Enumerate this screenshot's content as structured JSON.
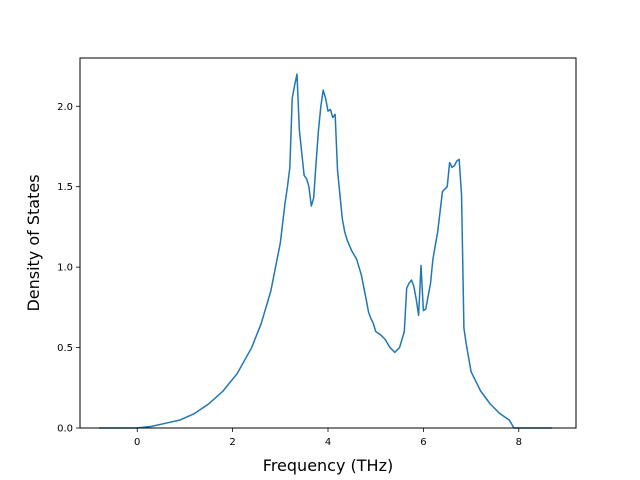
{
  "chart_data": {
    "type": "line",
    "title": "",
    "xlabel": "Frequency (THz)",
    "ylabel": "Density of States",
    "xlim": [
      -1.2,
      9.2
    ],
    "ylim": [
      0,
      2.3
    ],
    "xticks": [
      0,
      2,
      4,
      6,
      8
    ],
    "yticks": [
      0.0,
      0.5,
      1.0,
      1.5,
      2.0
    ],
    "xtick_labels": [
      "0",
      "2",
      "4",
      "6",
      "8"
    ],
    "ytick_labels": [
      "0.0",
      "0.5",
      "1.0",
      "1.5",
      "2.0"
    ],
    "grid": false,
    "legend": "none",
    "series": [
      {
        "color": "#1f77b4",
        "x": [
          -0.8,
          -0.4,
          0.0,
          0.3,
          0.6,
          0.9,
          1.2,
          1.5,
          1.8,
          2.1,
          2.4,
          2.6,
          2.8,
          2.9,
          3.0,
          3.1,
          3.15,
          3.2,
          3.25,
          3.3,
          3.35,
          3.4,
          3.5,
          3.55,
          3.6,
          3.65,
          3.7,
          3.75,
          3.8,
          3.85,
          3.9,
          3.95,
          4.0,
          4.05,
          4.1,
          4.15,
          4.2,
          4.25,
          4.3,
          4.35,
          4.4,
          4.5,
          4.6,
          4.7,
          4.8,
          4.85,
          4.9,
          4.95,
          5.0,
          5.1,
          5.2,
          5.3,
          5.4,
          5.5,
          5.6,
          5.65,
          5.7,
          5.75,
          5.8,
          5.85,
          5.9,
          5.95,
          6.0,
          6.05,
          6.1,
          6.15,
          6.2,
          6.3,
          6.4,
          6.5,
          6.55,
          6.6,
          6.65,
          6.7,
          6.75,
          6.8,
          6.85,
          6.9,
          7.0,
          7.2,
          7.4,
          7.6,
          7.8,
          7.9,
          8.0,
          8.3,
          8.7
        ],
        "y": [
          0.0,
          0.0,
          0.0,
          0.01,
          0.03,
          0.05,
          0.09,
          0.15,
          0.23,
          0.34,
          0.5,
          0.65,
          0.85,
          1.0,
          1.15,
          1.4,
          1.5,
          1.62,
          2.05,
          2.13,
          2.2,
          1.85,
          1.57,
          1.55,
          1.5,
          1.38,
          1.43,
          1.65,
          1.85,
          2.0,
          2.1,
          2.05,
          1.97,
          1.98,
          1.93,
          1.95,
          1.6,
          1.45,
          1.3,
          1.22,
          1.17,
          1.1,
          1.05,
          0.95,
          0.8,
          0.72,
          0.68,
          0.65,
          0.6,
          0.58,
          0.55,
          0.5,
          0.47,
          0.5,
          0.6,
          0.87,
          0.9,
          0.92,
          0.88,
          0.8,
          0.7,
          1.01,
          0.73,
          0.74,
          0.82,
          0.9,
          1.05,
          1.22,
          1.47,
          1.5,
          1.65,
          1.62,
          1.63,
          1.66,
          1.67,
          1.45,
          0.62,
          0.52,
          0.35,
          0.23,
          0.15,
          0.09,
          0.05,
          0.0,
          0.0,
          0.0,
          0.0
        ]
      }
    ]
  }
}
